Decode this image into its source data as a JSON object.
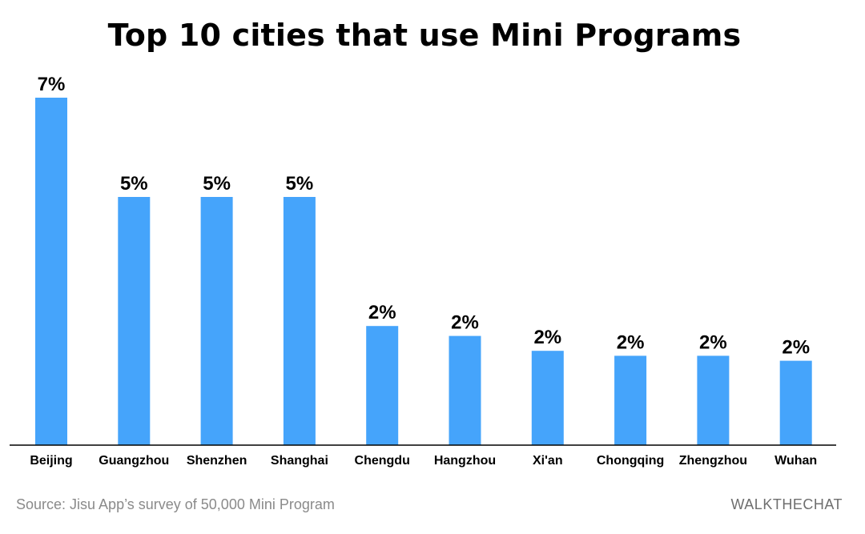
{
  "chart_data": {
    "type": "bar",
    "title": "Top 10 cities that use Mini Programs",
    "categories": [
      "Beijing",
      "Guangzhou",
      "Shenzhen",
      "Shanghai",
      "Chengdu",
      "Hangzhou",
      "Xi'an",
      "Chongqing",
      "Zhengzhou",
      "Wuhan"
    ],
    "values": [
      7.0,
      5.0,
      5.0,
      5.0,
      2.4,
      2.2,
      1.9,
      1.8,
      1.8,
      1.7
    ],
    "data_labels": [
      "7%",
      "5%",
      "5%",
      "5%",
      "2%",
      "2%",
      "2%",
      "2%",
      "2%",
      "2%"
    ],
    "xlabel": "",
    "ylabel": "",
    "ylim": [
      0,
      7
    ],
    "grid": false,
    "bar_color": "#45a4fb"
  },
  "footer": {
    "source": "Source: Jisu App’s survey of 50,000 Mini Program",
    "brand": "WALKTHECHAT"
  }
}
